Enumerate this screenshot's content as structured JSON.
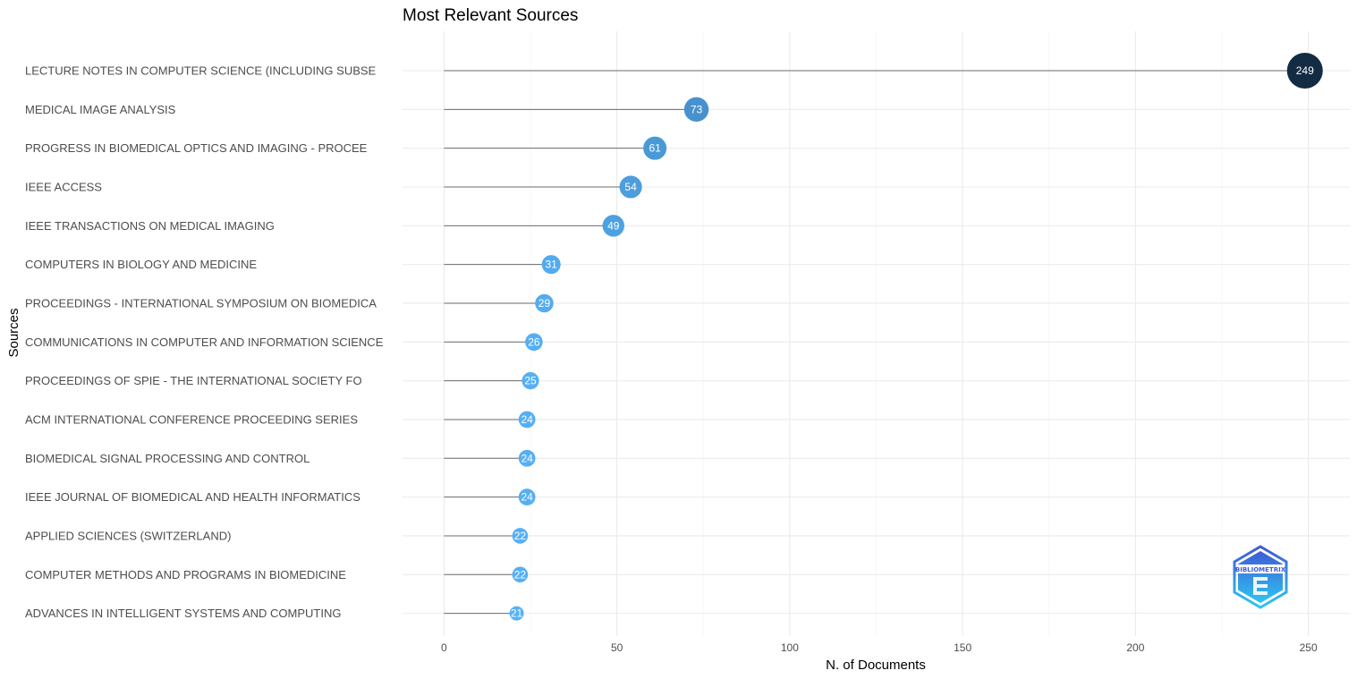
{
  "chart_data": {
    "type": "lollipop",
    "title": "Most Relevant Sources",
    "xlabel": "N. of Documents",
    "ylabel": "Sources",
    "xlim": [
      -12,
      262
    ],
    "x_ticks": [
      0,
      50,
      100,
      150,
      200,
      250
    ],
    "grid": true,
    "color_scale": {
      "low": "#56B1F7",
      "high": "#132B43"
    },
    "categories": [
      "LECTURE NOTES IN COMPUTER SCIENCE (INCLUDING SUBSE",
      "MEDICAL IMAGE ANALYSIS",
      "PROGRESS IN BIOMEDICAL OPTICS AND IMAGING - PROCEE",
      "IEEE ACCESS",
      "IEEE TRANSACTIONS ON MEDICAL IMAGING",
      "COMPUTERS IN BIOLOGY AND MEDICINE",
      "PROCEEDINGS - INTERNATIONAL SYMPOSIUM ON BIOMEDICA",
      "COMMUNICATIONS IN COMPUTER AND INFORMATION SCIENCE",
      "PROCEEDINGS OF SPIE - THE INTERNATIONAL SOCIETY FO",
      "ACM INTERNATIONAL CONFERENCE PROCEEDING SERIES",
      "BIOMEDICAL SIGNAL PROCESSING AND CONTROL",
      "IEEE JOURNAL OF BIOMEDICAL AND HEALTH INFORMATICS",
      "APPLIED SCIENCES (SWITZERLAND)",
      "COMPUTER METHODS AND PROGRAMS IN BIOMEDICINE",
      "ADVANCES IN INTELLIGENT SYSTEMS AND COMPUTING"
    ],
    "values": [
      249,
      73,
      61,
      54,
      49,
      31,
      29,
      26,
      25,
      24,
      24,
      24,
      22,
      22,
      21
    ]
  },
  "watermark": {
    "text": "BIBLIOMETRIX",
    "colors": [
      "#3f5bd6",
      "#2ec5f0"
    ]
  }
}
